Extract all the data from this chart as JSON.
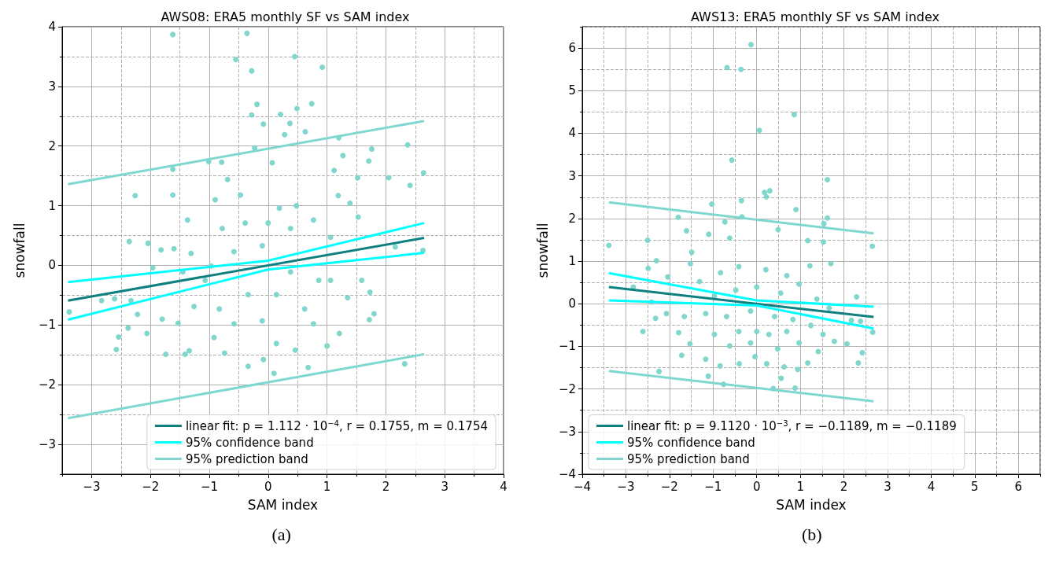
{
  "chart_data": [
    {
      "type": "scatter",
      "title": "AWS08: ERA5 monthly SF vs SAM index",
      "xlabel": "SAM index",
      "ylabel": "snowfall",
      "xlim": [
        -3.5,
        4
      ],
      "ylim": [
        -3.5,
        4
      ],
      "xticks": [
        -3,
        -2,
        -1,
        0,
        1,
        2,
        3,
        4
      ],
      "yticks": [
        -3,
        -2,
        -1,
        0,
        1,
        2,
        3,
        4
      ],
      "grid": true,
      "legend": "bottom right",
      "annotations": [
        "(a)"
      ],
      "series": [
        {
          "marker": "circle",
          "color": "#7fd7cd",
          "x": [
            -1.62,
            -0.36,
            -0.55,
            0.45,
            -0.28,
            0.92,
            -0.19,
            0.74,
            -0.28,
            0.21,
            0.49,
            -0.08,
            0.37,
            0.28,
            0.63,
            2.37,
            1.2,
            1.76,
            -0.23,
            1.27,
            1.71,
            -1.01,
            -0.79,
            -1.62,
            2.64,
            2.41,
            2.05,
            -2.26,
            -1.62,
            -0.69,
            0.07,
            1.12,
            1.52,
            -0.47,
            -0.9,
            1.19,
            1.39,
            -1.37,
            -2.36,
            -2.04,
            -1.82,
            -1.6,
            -1.96,
            -1.31,
            1.53,
            2.16,
            2.63,
            -2.83,
            -2.61,
            -3.38,
            -2.33,
            -2.22,
            -2.38,
            -2.54,
            -2.58,
            -2.06,
            -1.74,
            -1.41,
            -1.34,
            -0.74,
            -0.34,
            0.1,
            0.68,
            -0.08,
            2.32,
            1.8,
            1.72,
            1.73,
            1.21,
            1.0,
            0.46,
            0.14,
            -0.92,
            -1.8,
            -1.53,
            -0.58,
            -0.1,
            0.38,
            -0.34,
            0.14,
            0.62,
            -0.83,
            0.86,
            -1.07,
            0.0,
            0.38,
            -0.39,
            0.77,
            1.06,
            1.59,
            1.35,
            -0.58,
            -0.1,
            0.77,
            -1.26,
            -1.45,
            -0.97,
            0.19,
            0.48,
            -0.78,
            1.06
          ],
          "values": [
            3.87,
            3.89,
            3.45,
            3.5,
            3.26,
            3.32,
            2.7,
            2.71,
            2.52,
            2.53,
            2.63,
            2.37,
            2.38,
            2.19,
            2.24,
            2.02,
            2.14,
            1.95,
            1.97,
            1.84,
            1.75,
            1.74,
            1.73,
            1.61,
            1.55,
            1.34,
            1.47,
            1.17,
            1.18,
            1.44,
            1.72,
            1.59,
            1.47,
            1.18,
            1.1,
            1.17,
            1.04,
            0.76,
            0.4,
            0.37,
            0.26,
            0.28,
            -0.04,
            0.2,
            0.81,
            0.31,
            0.25,
            -0.59,
            -0.56,
            -0.78,
            -0.59,
            -0.82,
            -1.05,
            -1.2,
            -1.41,
            -1.14,
            -1.49,
            -1.49,
            -1.43,
            -1.47,
            -1.69,
            -1.81,
            -1.71,
            -1.58,
            -1.65,
            -0.81,
            -0.91,
            -0.45,
            -1.14,
            -1.35,
            -1.42,
            -1.31,
            -1.21,
            -0.9,
            -0.97,
            0.23,
            0.33,
            -0.11,
            -0.49,
            -0.49,
            -0.73,
            -0.73,
            -0.25,
            -0.25,
            0.71,
            0.62,
            0.71,
            0.76,
            0.47,
            -0.25,
            -0.54,
            -0.98,
            -0.93,
            -0.98,
            -0.69,
            -0.11,
            -0.01,
            0.96,
            1.0,
            0.62,
            -0.25
          ]
        },
        {
          "name": "linear fit: p = 1.112 · 10$^{−4}$, r = 0.1755, m = 0.1754",
          "type": "line",
          "marker": "none",
          "color": "#0f8080",
          "x": [
            -3.4,
            2.65
          ],
          "values": [
            -0.59,
            0.46
          ]
        },
        {
          "name": "95% confidence band",
          "type": "line",
          "marker": "none",
          "color": "#00ffff",
          "x": [
            -3.4,
            0,
            2.65
          ],
          "values": [
            -0.28,
            0.08,
            0.71
          ]
        },
        {
          "type": "line",
          "marker": "none",
          "color": "#00ffff",
          "x": [
            -3.4,
            0,
            2.65
          ],
          "values": [
            -0.91,
            -0.07,
            0.21
          ]
        },
        {
          "name": "95% prediction band",
          "type": "line",
          "marker": "none",
          "color": "#7fd8d0",
          "x": [
            -3.4,
            2.65
          ],
          "values": [
            1.36,
            2.42
          ]
        },
        {
          "type": "line",
          "marker": "none",
          "color": "#7fd8d0",
          "x": [
            -3.4,
            2.65
          ],
          "values": [
            -2.56,
            -1.49
          ]
        }
      ]
    },
    {
      "type": "scatter",
      "title": "AWS13: ERA5 monthly SF vs SAM index",
      "xlabel": "SAM index",
      "ylabel": "snowfall",
      "xlim": [
        -4,
        6.5
      ],
      "ylim": [
        -4,
        6.5
      ],
      "xticks": [
        -4,
        -3,
        -2,
        -1,
        0,
        1,
        2,
        3,
        4,
        5,
        6
      ],
      "yticks": [
        -4,
        -3,
        -2,
        -1,
        0,
        1,
        2,
        3,
        4,
        5,
        6
      ],
      "grid": true,
      "legend": "bottom left",
      "annotations": [
        "(b)"
      ],
      "series": [
        {
          "marker": "circle",
          "color": "#7fd7cd",
          "x": [
            -0.13,
            -0.68,
            -0.36,
            0.86,
            0.06,
            -0.57,
            1.62,
            0.18,
            0.3,
            0.22,
            -0.35,
            -1.03,
            0.9,
            -1.8,
            -0.34,
            1.62,
            1.54,
            -0.73,
            0.49,
            -1.61,
            -1.1,
            -3.39,
            -2.5,
            2.65,
            1.17,
            1.53,
            -0.62,
            -2.3,
            -2.49,
            -2.83,
            -2.04,
            -1.49,
            1.22,
            1.7,
            2.29,
            -2.61,
            -2.32,
            -1.79,
            -1.72,
            -1.53,
            -1.17,
            -2.24,
            -1.11,
            -0.76,
            0.38,
            0.88,
            0.56,
            -0.84,
            -0.4,
            0.23,
            -0.04,
            0.94,
            1.17,
            2.42,
            2.33,
            2.07,
            1.78,
            2.17,
            2.38,
            2.66,
            1.41,
            0.63,
            -0.83,
            -0.41,
            0.21,
            0.69,
            -1.52,
            -1.31,
            -0.97,
            -0.48,
            0.0,
            0.55,
            0.97,
            1.38,
            1.66,
            -1.66,
            -1.17,
            -0.69,
            -0.14,
            0.41,
            0.83,
            1.24,
            -0.41,
            0.0,
            0.28,
            0.69,
            -0.97,
            -0.62,
            -0.14,
            0.48,
            0.97,
            1.52,
            -2.07,
            -2.41
          ],
          "values": [
            6.08,
            5.54,
            5.5,
            4.44,
            4.07,
            3.37,
            2.91,
            2.61,
            2.65,
            2.51,
            2.42,
            2.34,
            2.21,
            2.03,
            2.04,
            2.01,
            1.88,
            1.92,
            1.74,
            1.71,
            1.63,
            1.37,
            1.49,
            1.35,
            1.48,
            1.45,
            1.54,
            1.01,
            0.83,
            0.39,
            0.63,
            1.21,
            0.89,
            0.94,
            0.16,
            -0.65,
            -0.34,
            -0.68,
            -1.21,
            -0.94,
            -1.3,
            -1.59,
            -1.7,
            -1.89,
            -1.99,
            -1.98,
            -1.75,
            -1.46,
            -1.41,
            -1.41,
            -1.24,
            -1.54,
            -1.39,
            -1.15,
            -1.39,
            -0.94,
            -0.88,
            -0.39,
            -0.41,
            -0.67,
            -1.12,
            -1.48,
            0.73,
            0.87,
            0.8,
            0.66,
            0.94,
            0.52,
            0.18,
            0.32,
            0.39,
            0.25,
            0.46,
            0.11,
            -0.1,
            -0.3,
            -0.23,
            -0.3,
            -0.17,
            -0.3,
            -0.37,
            -0.51,
            -0.65,
            -0.65,
            -0.72,
            -0.65,
            -0.72,
            -0.99,
            -0.92,
            -1.06,
            -0.92,
            -0.72,
            -0.23,
            0.04
          ]
        },
        {
          "name": "linear fit: p = 9.1120 · 10$^{−3}$, r = −0.1189, m = −0.1189",
          "type": "line",
          "marker": "none",
          "color": "#0f8080",
          "x": [
            -3.39,
            2.68
          ],
          "values": [
            0.39,
            -0.31
          ]
        },
        {
          "name": "95% confidence band",
          "type": "line",
          "marker": "none",
          "color": "#00ffff",
          "x": [
            -3.39,
            0,
            2.68
          ],
          "values": [
            0.72,
            0.08,
            -0.07
          ]
        },
        {
          "type": "line",
          "marker": "none",
          "color": "#00ffff",
          "x": [
            -3.39,
            0,
            2.68
          ],
          "values": [
            0.08,
            -0.04,
            -0.58
          ]
        },
        {
          "name": "95% prediction band",
          "type": "line",
          "marker": "none",
          "color": "#7fd8d0",
          "x": [
            -3.39,
            2.68
          ],
          "values": [
            2.38,
            1.65
          ]
        },
        {
          "type": "line",
          "marker": "none",
          "color": "#7fd8d0",
          "x": [
            -3.39,
            2.68
          ],
          "values": [
            -1.58,
            -2.29
          ]
        }
      ]
    }
  ]
}
